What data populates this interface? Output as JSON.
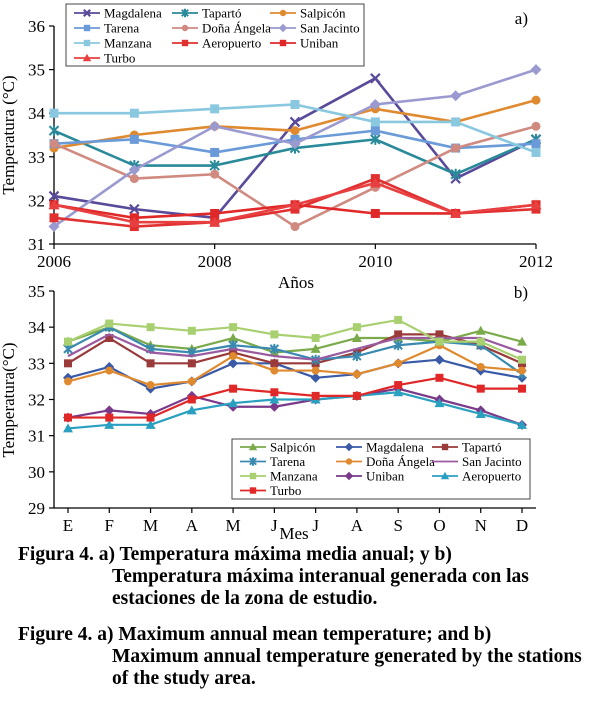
{
  "colors": {
    "Magdalena": "#5a4a9a",
    "Tapartó": "#2a8a9a",
    "Salpicón": "#e08a30",
    "Tarena": "#6a9ad8",
    "Doña Ángela": "#d08a80",
    "San Jacinto": "#9a9ad0",
    "Manzana": "#8ac8e0",
    "Aeropuerto": "#e03030",
    "Uniban": "#e02828",
    "Turbo": "#e84040",
    "b_Salpicón": "#7aaa4a",
    "b_Magdalena": "#3a5aa8",
    "b_Tapartó": "#9a3a3a",
    "b_Tarena": "#3a8ab0",
    "b_Doña Ángela": "#e08a30",
    "b_San Jacinto": "#9a5aa0",
    "b_Manzana": "#a8d070",
    "b_Uniban": "#7a3a8a",
    "b_Aeropuerto": "#2aa0c0",
    "b_Turbo": "#e02828"
  },
  "chart_data": [
    {
      "type": "line",
      "panel_label": "a)",
      "xlabel": "Años",
      "ylabel": "Temperatura (°C)",
      "x": [
        2006,
        2007,
        2008,
        2009,
        2010,
        2011,
        2012
      ],
      "xticks": [
        2006,
        2008,
        2010,
        2012
      ],
      "ylim": [
        31,
        36
      ],
      "yticks": [
        31,
        32,
        33,
        34,
        35,
        36
      ],
      "legend_rows": [
        [
          "Magdalena",
          "Tapartó",
          "Salpicón"
        ],
        [
          "Tarena",
          "Doña Ángela",
          "San Jacinto"
        ],
        [
          "Manzana",
          "Aeropuerto",
          "Uniban"
        ],
        [
          "Turbo"
        ]
      ],
      "series": [
        {
          "name": "Magdalena",
          "marker": "x",
          "values": [
            32.1,
            31.8,
            31.6,
            33.8,
            34.8,
            32.5,
            33.4
          ]
        },
        {
          "name": "Tapartó",
          "marker": "star",
          "values": [
            33.6,
            32.8,
            32.8,
            33.2,
            33.4,
            32.6,
            33.4
          ]
        },
        {
          "name": "Salpicón",
          "marker": "circle",
          "values": [
            33.2,
            33.5,
            33.7,
            33.6,
            34.1,
            33.8,
            34.3
          ]
        },
        {
          "name": "Tarena",
          "marker": "square",
          "values": [
            33.3,
            33.4,
            33.1,
            33.4,
            33.6,
            33.2,
            33.3
          ]
        },
        {
          "name": "Doña Ángela",
          "marker": "circle",
          "values": [
            33.3,
            32.5,
            32.6,
            31.4,
            32.3,
            33.2,
            33.7
          ]
        },
        {
          "name": "San Jacinto",
          "marker": "diamond",
          "values": [
            31.4,
            32.7,
            33.7,
            33.3,
            34.2,
            34.4,
            35.0
          ]
        },
        {
          "name": "Manzana",
          "marker": "square",
          "values": [
            34.0,
            34.0,
            34.1,
            34.2,
            33.8,
            33.8,
            33.1
          ]
        },
        {
          "name": "Aeropuerto",
          "marker": "square",
          "values": [
            31.6,
            31.4,
            31.5,
            31.8,
            32.5,
            31.7,
            31.8
          ]
        },
        {
          "name": "Uniban",
          "marker": "square",
          "values": [
            31.9,
            31.6,
            31.7,
            31.9,
            31.7,
            31.7,
            31.9
          ]
        },
        {
          "name": "Turbo",
          "marker": "triangle",
          "values": [
            31.9,
            31.5,
            31.5,
            31.9,
            32.4,
            31.7,
            31.9
          ]
        }
      ]
    },
    {
      "type": "line",
      "panel_label": "b)",
      "xlabel": "Mes",
      "ylabel": "Temperatura(°C)",
      "categories": [
        "E",
        "F",
        "M",
        "A",
        "M",
        "J",
        "J",
        "A",
        "S",
        "O",
        "N",
        "D"
      ],
      "ylim": [
        29,
        35
      ],
      "yticks": [
        29,
        30,
        31,
        32,
        33,
        34,
        35
      ],
      "legend_rows": [
        [
          "Salpicón",
          "Magdalena",
          "Tapartó"
        ],
        [
          "Tarena",
          "Doña Ángela",
          "San Jacinto"
        ],
        [
          "Manzana",
          "Uniban",
          "Aeropuerto"
        ],
        [
          "Turbo"
        ]
      ],
      "series": [
        {
          "name": "Salpicón",
          "marker": "triangle",
          "values": [
            33.6,
            34.0,
            33.5,
            33.4,
            33.7,
            33.3,
            33.4,
            33.7,
            33.7,
            33.6,
            33.9,
            33.6
          ]
        },
        {
          "name": "Magdalena",
          "marker": "diamond",
          "values": [
            32.6,
            32.9,
            32.3,
            32.5,
            33.0,
            33.0,
            32.6,
            32.7,
            33.0,
            33.1,
            32.8,
            32.6
          ]
        },
        {
          "name": "Tapartó",
          "marker": "square",
          "values": [
            33.0,
            33.7,
            33.0,
            33.0,
            33.3,
            33.0,
            33.0,
            33.3,
            33.8,
            33.8,
            33.5,
            33.0
          ]
        },
        {
          "name": "Tarena",
          "marker": "star",
          "values": [
            33.4,
            34.0,
            33.4,
            33.3,
            33.5,
            33.4,
            33.1,
            33.2,
            33.5,
            33.6,
            33.5,
            32.7
          ]
        },
        {
          "name": "Doña Ángela",
          "marker": "circle",
          "values": [
            32.5,
            32.8,
            32.4,
            32.5,
            33.2,
            32.8,
            32.8,
            32.7,
            33.0,
            33.5,
            32.9,
            32.8
          ]
        },
        {
          "name": "San Jacinto",
          "marker": "none",
          "values": [
            33.2,
            33.8,
            33.3,
            33.2,
            33.4,
            33.2,
            33.1,
            33.4,
            33.7,
            33.7,
            33.7,
            33.3
          ]
        },
        {
          "name": "Manzana",
          "marker": "square",
          "values": [
            33.6,
            34.1,
            34.0,
            33.9,
            34.0,
            33.8,
            33.7,
            34.0,
            34.2,
            33.6,
            33.6,
            33.1
          ]
        },
        {
          "name": "Uniban",
          "marker": "diamond",
          "values": [
            31.5,
            31.7,
            31.6,
            32.1,
            31.8,
            31.8,
            32.0,
            32.1,
            32.3,
            32.0,
            31.7,
            31.3
          ]
        },
        {
          "name": "Aeropuerto",
          "marker": "triangle",
          "values": [
            31.2,
            31.3,
            31.3,
            31.7,
            31.9,
            32.0,
            32.0,
            32.1,
            32.2,
            31.9,
            31.6,
            31.3
          ]
        },
        {
          "name": "Turbo",
          "marker": "square",
          "values": [
            31.5,
            31.5,
            31.5,
            32.0,
            32.3,
            32.2,
            32.1,
            32.1,
            32.4,
            32.6,
            32.3,
            32.3
          ]
        }
      ]
    }
  ],
  "captions": [
    {
      "lead": "Figura 4. a) Temperatura máxima media anual; y b)",
      "rest": "Temperatura máxima interanual generada con las estaciones de la zona de estudio."
    },
    {
      "lead": "Figure 4. a) Maximum annual mean temperature; and b)",
      "rest": "Maximum annual temperature generated by the stations of the study area."
    }
  ]
}
